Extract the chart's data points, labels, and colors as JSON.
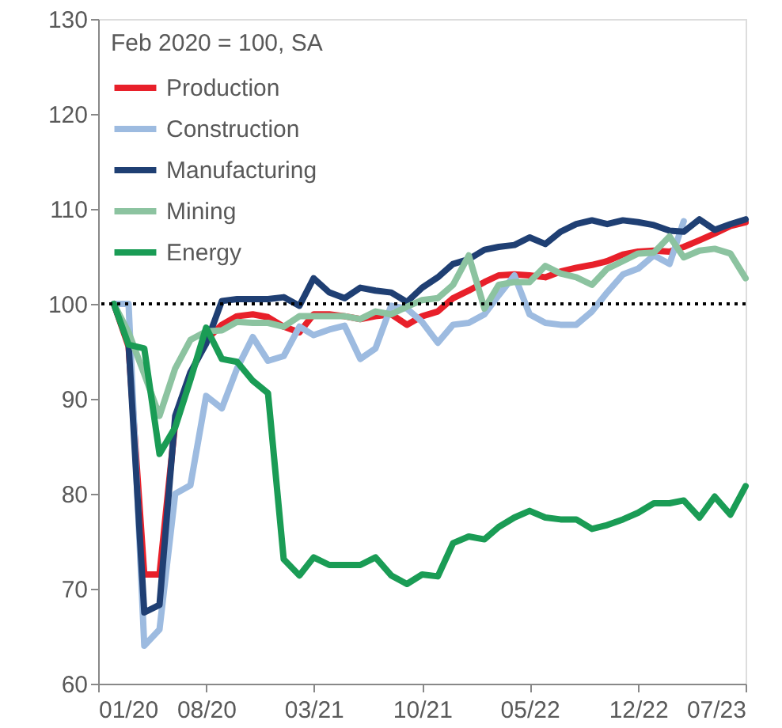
{
  "chart_data": {
    "type": "line",
    "legend_title": "Feb 2020 = 100, SA",
    "legend": "top left",
    "grid": false,
    "marker": "none",
    "line_style": "solid",
    "x": [
      "2020-02",
      "2020-03",
      "2020-04",
      "2020-05",
      "2020-06",
      "2020-07",
      "2020-08",
      "2020-09",
      "2020-10",
      "2020-11",
      "2020-12",
      "2021-01",
      "2021-02",
      "2021-03",
      "2021-04",
      "2021-05",
      "2021-06",
      "2021-07",
      "2021-08",
      "2021-09",
      "2021-10",
      "2021-11",
      "2021-12",
      "2022-01",
      "2022-02",
      "2022-03",
      "2022-04",
      "2022-05",
      "2022-06",
      "2022-07",
      "2022-08",
      "2022-09",
      "2022-10",
      "2022-11",
      "2022-12",
      "2023-01",
      "2023-02",
      "2023-03",
      "2023-04",
      "2023-05",
      "2023-06",
      "2023-07"
    ],
    "series": [
      {
        "name": "Production",
        "color": "#e8202a",
        "values": [
          100,
          95.5,
          71.5,
          71.5,
          87.5,
          92.6,
          96.2,
          97.8,
          98.7,
          98.9,
          98.6,
          97.6,
          97,
          98.9,
          98.9,
          98.7,
          98.4,
          98.7,
          98.9,
          97.8,
          98.7,
          99.2,
          100.6,
          101.4,
          102.3,
          103,
          103.1,
          103,
          102.8,
          103.4,
          103.8,
          104.1,
          104.5,
          105.2,
          105.5,
          105.6,
          105.5,
          106,
          106.7,
          107.4,
          108.2,
          108.6
        ]
      },
      {
        "name": "Construction",
        "color": "#9dbbe0",
        "values": [
          100,
          100,
          64,
          65.7,
          80,
          80.9,
          90.3,
          89,
          93.2,
          96.5,
          94,
          94.5,
          97.6,
          96.7,
          97.3,
          97.7,
          94.2,
          95.3,
          99.8,
          99.5,
          98.1,
          95.9,
          97.8,
          98,
          98.9,
          100.9,
          103,
          98.9,
          98,
          97.8,
          97.8,
          99.2,
          101.2,
          103.1,
          103.7,
          105.1,
          104.2,
          108.7,
          null,
          null,
          null,
          null
        ]
      },
      {
        "name": "Manufacturing",
        "color": "#1f3f73",
        "values": [
          100,
          95.8,
          67.5,
          68.3,
          88.2,
          92.8,
          95.8,
          100.3,
          100.5,
          100.5,
          100.5,
          100.7,
          99.8,
          102.7,
          101.2,
          100.6,
          101.7,
          101.4,
          101.2,
          100.2,
          101.7,
          102.8,
          104.2,
          104.7,
          105.7,
          106,
          106.2,
          107,
          106.3,
          107.6,
          108.4,
          108.8,
          108.4,
          108.8,
          108.6,
          108.3,
          107.7,
          107.6,
          108.9,
          107.8,
          108.4,
          108.9
        ]
      },
      {
        "name": "Mining",
        "color": "#8cc3a0",
        "values": [
          100,
          97,
          92.6,
          88.2,
          93.2,
          96.2,
          97.1,
          97.2,
          98.1,
          98,
          98,
          97.6,
          98.7,
          98.7,
          98.7,
          98.7,
          98.4,
          99.2,
          98.9,
          99.7,
          100.4,
          100.6,
          102,
          105.1,
          99.5,
          102,
          102.3,
          102.3,
          104,
          103.2,
          102.8,
          102,
          103.7,
          104.5,
          105.3,
          105.4,
          107.1,
          104.9,
          105.6,
          105.8,
          105.3,
          102.7
        ]
      },
      {
        "name": "Energy",
        "color": "#1a9c55",
        "values": [
          100,
          95.7,
          95.3,
          84.2,
          87,
          92,
          97.5,
          94.2,
          93.9,
          91.9,
          90.6,
          73.1,
          71.4,
          73.3,
          72.5,
          72.5,
          72.5,
          73.3,
          71.4,
          70.5,
          71.5,
          71.3,
          74.8,
          75.5,
          75.2,
          76.5,
          77.5,
          78.2,
          77.5,
          77.3,
          77.3,
          76.3,
          76.7,
          77.3,
          78,
          79,
          79,
          79.3,
          77.5,
          79.7,
          77.8,
          80.8
        ]
      }
    ],
    "xlim": [
      "2020-01",
      "2023-07"
    ],
    "xticks": [
      {
        "value": "2020-01",
        "label": "01/20"
      },
      {
        "value": "2020-08",
        "label": "08/20"
      },
      {
        "value": "2021-03",
        "label": "03/21"
      },
      {
        "value": "2021-10",
        "label": "10/21"
      },
      {
        "value": "2022-05",
        "label": "05/22"
      },
      {
        "value": "2022-12",
        "label": "12/22"
      },
      {
        "value": "2023-07",
        "label": "07/23"
      }
    ],
    "ylim": [
      60,
      130
    ],
    "yticks": [
      60,
      70,
      80,
      90,
      100,
      110,
      120,
      130
    ],
    "ref_lines": [
      {
        "axis": "y",
        "value": 100,
        "label": null,
        "color": "#000000",
        "line_style": "dotted"
      }
    ]
  }
}
